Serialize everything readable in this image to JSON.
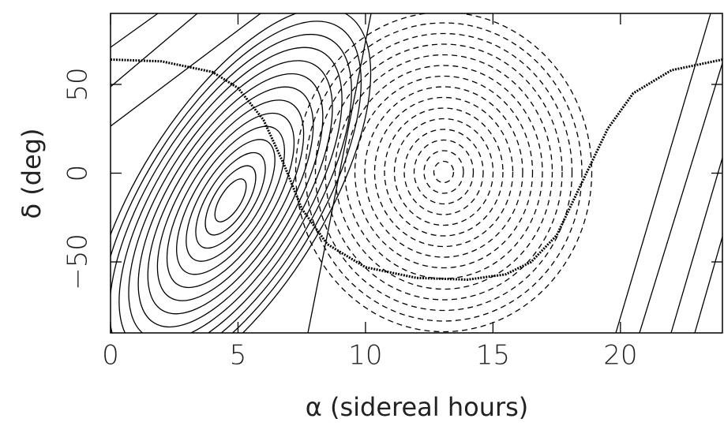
{
  "chart_data": {
    "type": "line",
    "x_label": "α (sidereal hours)",
    "y_label": "δ (deg)",
    "xlim": [
      0,
      24
    ],
    "xticks": [
      0,
      5,
      10,
      15,
      20
    ],
    "ylim": [
      -90,
      90
    ],
    "yticks": [
      {
        "value": -50,
        "label": "−50"
      },
      0,
      50
    ],
    "x": [
      0,
      2,
      4,
      5,
      6,
      6.8,
      7.5,
      8.5,
      10,
      12,
      14,
      15.5,
      16.5,
      17.5,
      18.5,
      19.5,
      20.5,
      22,
      24
    ],
    "series": [
      {
        "color": "#000000",
        "values": [
          64,
          63,
          57,
          48,
          30,
          5,
          -20,
          -40,
          -53,
          -59,
          -60,
          -57,
          -50,
          -35,
          -5,
          25,
          45,
          58,
          64
        ]
      }
    ]
  }
}
